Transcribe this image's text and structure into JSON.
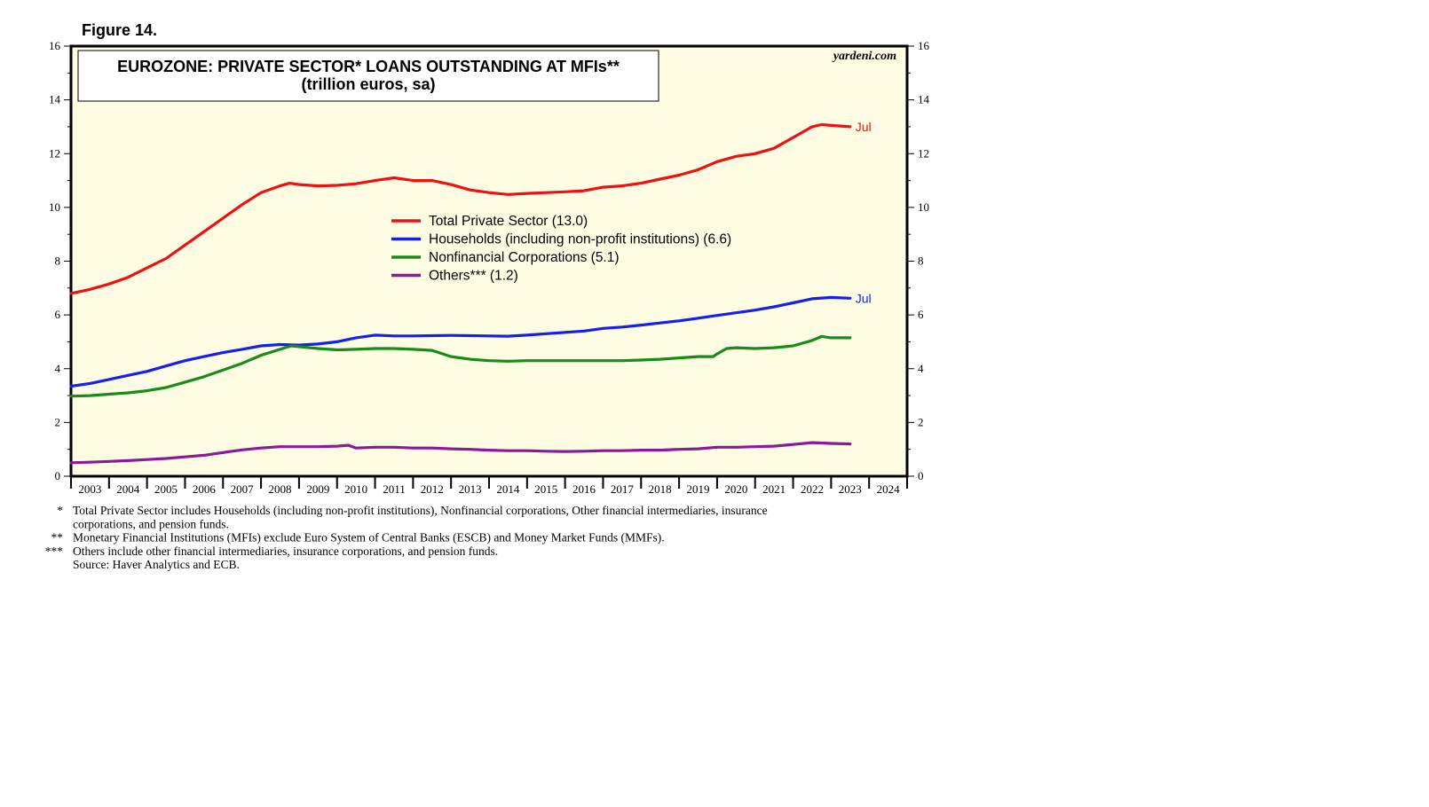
{
  "figure_label": "Figure 14.",
  "brand": "yardeni.com",
  "colors": {
    "plot_background": "#fefde4",
    "total": "#ee1111",
    "households": "#1520e8",
    "nonfinancial": "#1a8a1a",
    "others": "#8a1a9a"
  },
  "chart_data": {
    "type": "line",
    "title": "EUROZONE: PRIVATE SECTOR* LOANS OUTSTANDING AT MFIs**",
    "subtitle": "(trillion euros, sa)",
    "xlabel": "",
    "ylabel": "",
    "ylim": [
      0,
      16
    ],
    "xlim": [
      2003,
      2025
    ],
    "yticks": [
      "0",
      "2",
      "4",
      "6",
      "8",
      "10",
      "12",
      "14",
      "16"
    ],
    "xticks": [
      "2003",
      "2004",
      "2005",
      "2006",
      "2007",
      "2008",
      "2009",
      "2010",
      "2011",
      "2012",
      "2013",
      "2014",
      "2015",
      "2016",
      "2017",
      "2018",
      "2019",
      "2020",
      "2021",
      "2022",
      "2023",
      "2024"
    ],
    "grid": false,
    "legend_position": "center",
    "series": [
      {
        "key": "total",
        "name": "Total Private Sector (13.0)",
        "end_label": "Jul",
        "x": [
          2003.0,
          2003.5,
          2004.0,
          2004.5,
          2005.0,
          2005.5,
          2006.0,
          2006.5,
          2007.0,
          2007.5,
          2008.0,
          2008.5,
          2008.75,
          2009.0,
          2009.5,
          2010.0,
          2010.5,
          2011.0,
          2011.5,
          2012.0,
          2012.5,
          2013.0,
          2013.5,
          2014.0,
          2014.5,
          2015.0,
          2015.5,
          2016.0,
          2016.5,
          2017.0,
          2017.5,
          2018.0,
          2018.5,
          2019.0,
          2019.5,
          2020.0,
          2020.5,
          2021.0,
          2021.5,
          2022.0,
          2022.5,
          2022.75,
          2023.0,
          2023.5
        ],
        "values": [
          6.8,
          6.95,
          7.15,
          7.4,
          7.75,
          8.1,
          8.6,
          9.1,
          9.6,
          10.1,
          10.55,
          10.8,
          10.9,
          10.85,
          10.8,
          10.82,
          10.88,
          11.0,
          11.1,
          11.0,
          11.0,
          10.85,
          10.65,
          10.55,
          10.48,
          10.52,
          10.55,
          10.58,
          10.62,
          10.75,
          10.8,
          10.9,
          11.05,
          11.2,
          11.4,
          11.7,
          11.9,
          12.0,
          12.2,
          12.6,
          13.0,
          13.08,
          13.05,
          13.0
        ]
      },
      {
        "key": "households",
        "name": "Households (including non-profit institutions) (6.6)",
        "end_label": "Jul",
        "x": [
          2003.0,
          2003.5,
          2004.0,
          2004.5,
          2005.0,
          2005.5,
          2006.0,
          2006.5,
          2007.0,
          2007.5,
          2008.0,
          2008.5,
          2009.0,
          2009.5,
          2010.0,
          2010.5,
          2011.0,
          2011.5,
          2012.0,
          2012.5,
          2013.0,
          2013.5,
          2014.0,
          2014.5,
          2015.0,
          2015.5,
          2016.0,
          2016.5,
          2017.0,
          2017.5,
          2018.0,
          2018.5,
          2019.0,
          2019.5,
          2020.0,
          2020.5,
          2021.0,
          2021.5,
          2022.0,
          2022.5,
          2023.0,
          2023.5
        ],
        "values": [
          3.35,
          3.45,
          3.6,
          3.75,
          3.9,
          4.1,
          4.3,
          4.45,
          4.6,
          4.72,
          4.85,
          4.9,
          4.88,
          4.92,
          5.0,
          5.15,
          5.25,
          5.22,
          5.22,
          5.23,
          5.24,
          5.23,
          5.22,
          5.21,
          5.25,
          5.3,
          5.35,
          5.4,
          5.5,
          5.55,
          5.62,
          5.7,
          5.78,
          5.88,
          5.98,
          6.08,
          6.18,
          6.3,
          6.45,
          6.6,
          6.65,
          6.62
        ]
      },
      {
        "key": "nonfinancial",
        "name": "Nonfinancial Corporations (5.1)",
        "end_label": "",
        "x": [
          2003.0,
          2003.5,
          2004.0,
          2004.5,
          2005.0,
          2005.5,
          2006.0,
          2006.5,
          2007.0,
          2007.5,
          2008.0,
          2008.5,
          2008.8,
          2009.0,
          2009.5,
          2010.0,
          2010.5,
          2011.0,
          2011.5,
          2012.0,
          2012.5,
          2013.0,
          2013.5,
          2014.0,
          2014.5,
          2015.0,
          2015.5,
          2016.0,
          2016.5,
          2017.0,
          2017.5,
          2018.0,
          2018.5,
          2019.0,
          2019.5,
          2019.9,
          2020.0,
          2020.25,
          2020.5,
          2021.0,
          2021.5,
          2022.0,
          2022.5,
          2022.75,
          2023.0,
          2023.5
        ],
        "values": [
          2.98,
          3.0,
          3.05,
          3.1,
          3.18,
          3.3,
          3.5,
          3.7,
          3.95,
          4.2,
          4.5,
          4.72,
          4.85,
          4.82,
          4.75,
          4.7,
          4.72,
          4.75,
          4.75,
          4.72,
          4.68,
          4.45,
          4.35,
          4.3,
          4.28,
          4.3,
          4.3,
          4.3,
          4.3,
          4.3,
          4.3,
          4.32,
          4.35,
          4.4,
          4.45,
          4.45,
          4.55,
          4.75,
          4.78,
          4.75,
          4.78,
          4.85,
          5.05,
          5.2,
          5.15,
          5.15
        ]
      },
      {
        "key": "others",
        "name": "Others*** (1.2)",
        "end_label": "",
        "x": [
          2003.0,
          2003.5,
          2004.0,
          2004.5,
          2005.0,
          2005.5,
          2006.0,
          2006.5,
          2007.0,
          2007.5,
          2008.0,
          2008.5,
          2009.0,
          2009.5,
          2010.0,
          2010.3,
          2010.5,
          2011.0,
          2011.5,
          2012.0,
          2012.5,
          2013.0,
          2013.5,
          2014.0,
          2014.5,
          2015.0,
          2015.5,
          2016.0,
          2016.5,
          2017.0,
          2017.5,
          2018.0,
          2018.5,
          2019.0,
          2019.5,
          2020.0,
          2020.5,
          2021.0,
          2021.5,
          2022.0,
          2022.5,
          2023.0,
          2023.5
        ],
        "values": [
          0.5,
          0.52,
          0.55,
          0.58,
          0.62,
          0.66,
          0.72,
          0.78,
          0.88,
          0.98,
          1.05,
          1.1,
          1.1,
          1.1,
          1.12,
          1.15,
          1.05,
          1.08,
          1.08,
          1.05,
          1.05,
          1.02,
          1.0,
          0.97,
          0.95,
          0.95,
          0.93,
          0.92,
          0.93,
          0.95,
          0.95,
          0.97,
          0.97,
          1.0,
          1.02,
          1.08,
          1.08,
          1.1,
          1.12,
          1.18,
          1.25,
          1.22,
          1.2
        ]
      }
    ]
  },
  "footnotes": [
    {
      "mark": "*",
      "lines": [
        "Total Private Sector includes Households (including non-profit institutions), Nonfinancial corporations, Other financial intermediaries, insurance",
        "corporations, and pension funds."
      ]
    },
    {
      "mark": "**",
      "lines": [
        "Monetary Financial Institutions (MFIs) exclude Euro System of Central Banks (ESCB) and Money Market Funds (MMFs)."
      ]
    },
    {
      "mark": "***",
      "lines": [
        "Others include other financial intermediaries, insurance corporations, and pension funds."
      ]
    },
    {
      "mark": "",
      "lines": [
        "Source: Haver Analytics and ECB."
      ]
    }
  ]
}
